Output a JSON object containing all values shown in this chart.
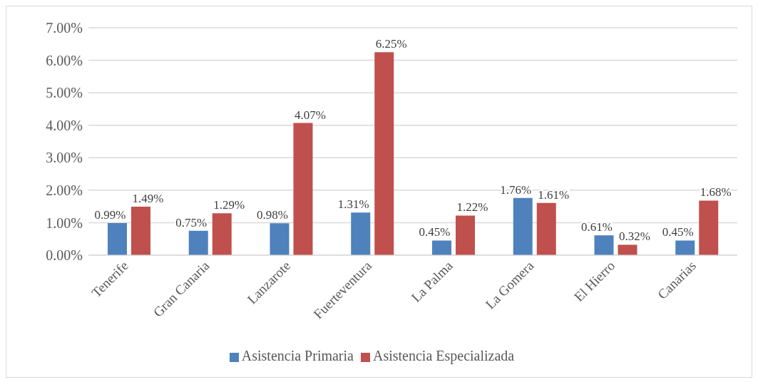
{
  "chart_data": {
    "type": "bar",
    "categories": [
      "Tenerife",
      "Gran Canaria",
      "Lanzarote",
      "Fuerteventura",
      "La Palma",
      "La Gomera",
      "El Hierro",
      "Canarias"
    ],
    "series": [
      {
        "name": "Asistencia Primaria",
        "color": "#4f81bd",
        "values": [
          0.99,
          0.75,
          0.98,
          1.31,
          0.45,
          1.76,
          0.61,
          0.45
        ],
        "value_labels": [
          "0.99%",
          "0.75%",
          "0.98%",
          "1.31%",
          "0.45%",
          "1.76%",
          "0.61%",
          "0.45%"
        ]
      },
      {
        "name": "Asistencia Especializada",
        "color": "#c0504d",
        "values": [
          1.49,
          1.29,
          4.07,
          6.25,
          1.22,
          1.61,
          0.32,
          1.68
        ],
        "value_labels": [
          "1.49%",
          "1.29%",
          "4.07%",
          "6.25%",
          "1.22%",
          "1.61%",
          "0.32%",
          "1.68%"
        ]
      }
    ],
    "ylim": [
      0,
      7
    ],
    "yticks": [
      {
        "value": 0,
        "label": "0.00%"
      },
      {
        "value": 1,
        "label": "1.00%"
      },
      {
        "value": 2,
        "label": "2.00%"
      },
      {
        "value": 3,
        "label": "3.00%"
      },
      {
        "value": 4,
        "label": "4.00%"
      },
      {
        "value": 5,
        "label": "5.00%"
      },
      {
        "value": 6,
        "label": "6.00%"
      },
      {
        "value": 7,
        "label": "7.00%"
      }
    ],
    "grid": "y",
    "legend": "bottom"
  }
}
